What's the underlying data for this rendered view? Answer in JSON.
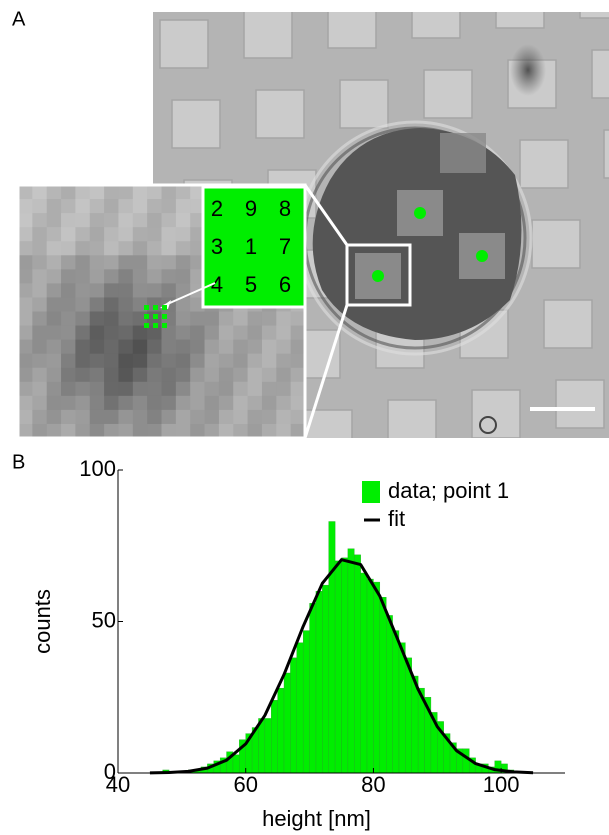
{
  "panel_a": {
    "label": "A",
    "grid": [
      [
        "2",
        "9",
        "8"
      ],
      [
        "3",
        "1",
        "7"
      ],
      [
        "4",
        "5",
        "6"
      ]
    ]
  },
  "chart_data": {
    "type": "histogram",
    "panel_label": "B",
    "xlabel": "height [nm]",
    "ylabel": "counts",
    "xlim": [
      40,
      110
    ],
    "xticks": [
      40,
      60,
      80,
      100
    ],
    "ylim": [
      0,
      100
    ],
    "yticks": [
      0,
      50,
      100
    ],
    "legend": "upper right",
    "bins": [
      47,
      48,
      49,
      50,
      51,
      52,
      53,
      54,
      55,
      56,
      57,
      58,
      59,
      60,
      61,
      62,
      63,
      64,
      65,
      66,
      67,
      68,
      69,
      70,
      71,
      72,
      73,
      74,
      75,
      76,
      77,
      78,
      79,
      80,
      81,
      82,
      83,
      84,
      85,
      86,
      87,
      88,
      89,
      90,
      91,
      92,
      93,
      94,
      95,
      96,
      97,
      98,
      99,
      100,
      101,
      102
    ],
    "series": [
      {
        "name": "data; point 1",
        "color": "#00ee00",
        "values": [
          1,
          0,
          0,
          0,
          1,
          1,
          2,
          3,
          4,
          5,
          7,
          6,
          11,
          13,
          15,
          18,
          18,
          24,
          28,
          33,
          38,
          43,
          47,
          56,
          60,
          62,
          83,
          70,
          71,
          74,
          72,
          66,
          64,
          63,
          58,
          52,
          47,
          43,
          38,
          32,
          28,
          25,
          20,
          17,
          13,
          10,
          8,
          8,
          5,
          3,
          3,
          2,
          4,
          3,
          1
        ]
      },
      {
        "name": "fit",
        "color": "#000000",
        "type": "line",
        "x": [
          45,
          48,
          51,
          54,
          57,
          60,
          63,
          66,
          69,
          72,
          75,
          78,
          81,
          84,
          87,
          90,
          93,
          96,
          99,
          102,
          105
        ],
        "values": [
          0.04,
          0.16,
          0.54,
          1.62,
          4.23,
          9.6,
          19.0,
          32.5,
          48.4,
          62.6,
          70.4,
          68.8,
          58.4,
          43.1,
          27.6,
          15.3,
          7.4,
          3.1,
          1.1,
          0.36,
          0.1
        ]
      }
    ]
  }
}
